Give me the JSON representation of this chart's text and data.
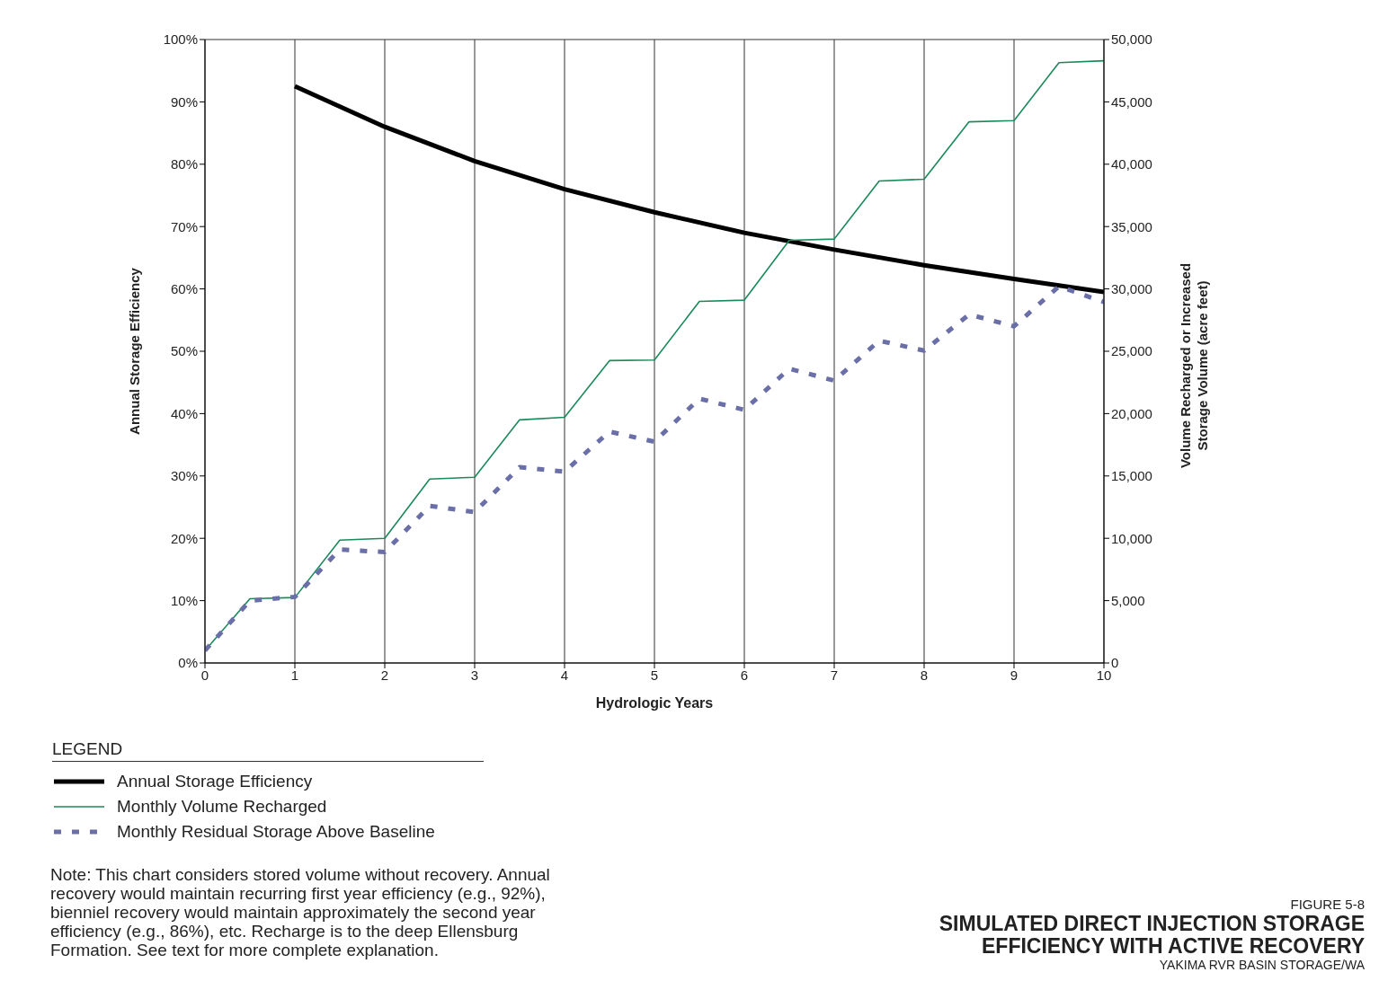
{
  "chart_data": {
    "type": "line",
    "title": "SIMULATED DIRECT INJECTION STORAGE EFFICIENCY WITH ACTIVE RECOVERY",
    "xlabel": "Hydrologic Years",
    "ylabel": "Annual Storage Efficiency",
    "y2label": "Volume Recharged or Increased Storage Volume (acre feet)",
    "legend_title": "LEGEND",
    "legend": "bottom left",
    "grid": true,
    "xlim": [
      0,
      10
    ],
    "xticks": [
      0,
      1,
      2,
      3,
      4,
      5,
      6,
      7,
      8,
      9,
      10
    ],
    "ylim": [
      0,
      100
    ],
    "yticks": [
      {
        "value": 0,
        "label": "0%"
      },
      {
        "value": 10,
        "label": "10%"
      },
      {
        "value": 20,
        "label": "20%"
      },
      {
        "value": 30,
        "label": "30%"
      },
      {
        "value": 40,
        "label": "40%"
      },
      {
        "value": 50,
        "label": "50%"
      },
      {
        "value": 60,
        "label": "60%"
      },
      {
        "value": 70,
        "label": "70%"
      },
      {
        "value": 80,
        "label": "80%"
      },
      {
        "value": 90,
        "label": "90%"
      },
      {
        "value": 100,
        "label": "100%"
      }
    ],
    "y2lim": [
      0,
      50000
    ],
    "y2ticks": [
      0,
      {
        "value": 5000,
        "label": "5,000"
      },
      {
        "value": 10000,
        "label": "10,000"
      },
      {
        "value": 15000,
        "label": "15,000"
      },
      {
        "value": 20000,
        "label": "20,000"
      },
      {
        "value": 25000,
        "label": "25,000"
      },
      {
        "value": 30000,
        "label": "30,000"
      },
      {
        "value": 35000,
        "label": "35,000"
      },
      {
        "value": 40000,
        "label": "40,000"
      },
      {
        "value": 45000,
        "label": "45,000"
      },
      {
        "value": 50000,
        "label": "50,000"
      }
    ],
    "series": [
      {
        "name": "Annual Storage Efficiency",
        "color": "#000000",
        "line_style": "solid",
        "x": [
          1,
          2,
          3,
          4,
          5,
          6,
          7,
          8,
          9,
          10
        ],
        "values": [
          92.5,
          86,
          80.5,
          76,
          72.3,
          69,
          66.3,
          63.8,
          61.6,
          59.5
        ]
      },
      {
        "name": "Monthly Volume Recharged",
        "color": "#1a8a5a",
        "line_style": "solid",
        "axis": "y2",
        "x": [
          0,
          0.5,
          1,
          1.5,
          2,
          2.5,
          3,
          3.5,
          4,
          4.5,
          5,
          5.5,
          6,
          6.5,
          7,
          7.5,
          8,
          8.5,
          9,
          9.5,
          10
        ],
        "values": [
          1000,
          5150,
          5250,
          9850,
          10000,
          14750,
          14900,
          19500,
          19700,
          24250,
          24300,
          29000,
          29100,
          33900,
          34000,
          38650,
          38800,
          43400,
          43500,
          48150,
          48300
        ]
      },
      {
        "name": "Monthly Residual Storage Above Baseline",
        "color": "#6a6fa8",
        "line_style": "dashed",
        "axis": "y2",
        "x": [
          0,
          0.5,
          1,
          1.5,
          2,
          2.5,
          3,
          3.5,
          4,
          4.5,
          5,
          5.5,
          6,
          6.5,
          7,
          7.5,
          8,
          8.5,
          9,
          9.5,
          10
        ],
        "values": [
          1000,
          5000,
          5300,
          9100,
          8900,
          12600,
          12100,
          15700,
          15350,
          18550,
          17750,
          21200,
          20300,
          23600,
          22650,
          25850,
          25050,
          27950,
          27000,
          30200,
          28950
        ]
      }
    ],
    "annotations": [
      "Note: This chart considers stored volume without recovery. Annual recovery would maintain recurring first year efficiency (e.g., 92%), bienniel recovery would maintain approximately the second year efficiency (e.g., 86%), etc.  Recharge is to the deep Ellensburg Formation.  See text for more complete explanation.",
      "FIGURE 5-8",
      "YAKIMA RVR BASIN STORAGE/WA"
    ]
  }
}
